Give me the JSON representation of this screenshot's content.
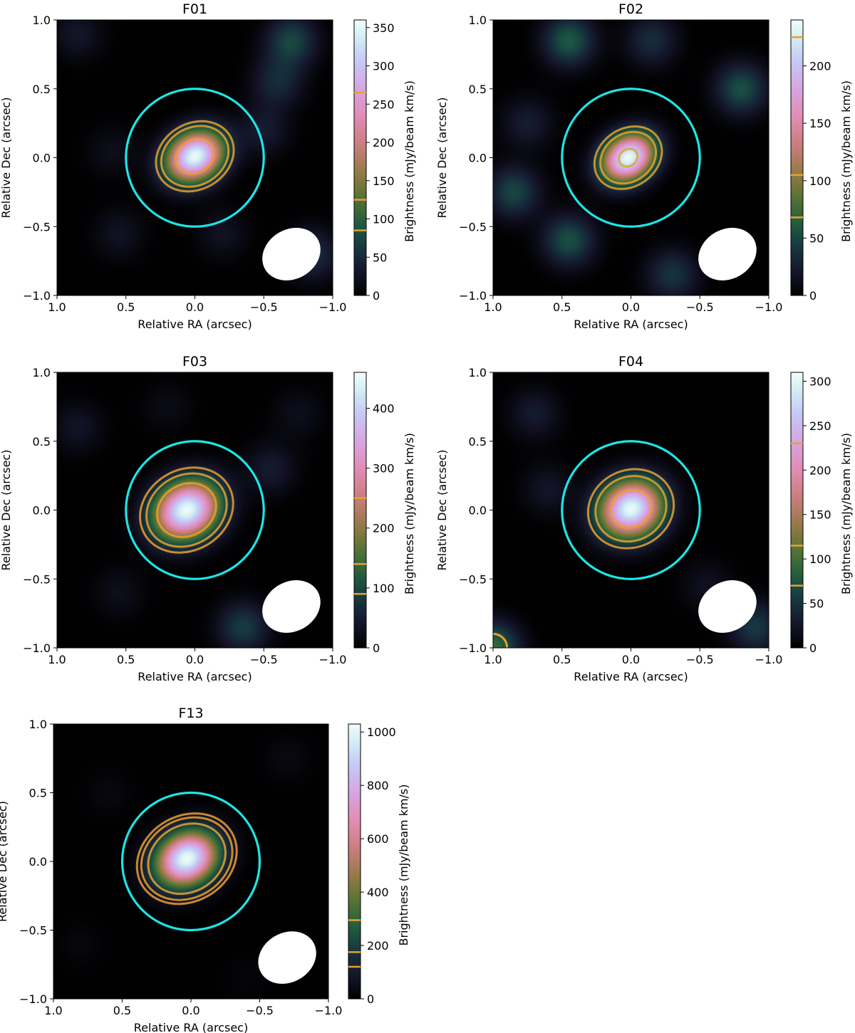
{
  "chart_data": [
    {
      "type": "heatmap",
      "title": "F01",
      "xlabel": "Relative RA (arcsec)",
      "ylabel": "Relative Dec (arcsec)",
      "colorbar_label": "Brightness (mJy/beam km/s)",
      "xlim": [
        1.0,
        -1.0
      ],
      "ylim": [
        -1.0,
        1.0
      ],
      "xticks": [
        "1.0",
        "0.5",
        "0.0",
        "−0.5",
        "−1.0"
      ],
      "yticks": [
        "1.0",
        "0.5",
        "0.0",
        "−0.5",
        "−1.0"
      ],
      "colorbar_range": [
        0,
        360
      ],
      "colorbar_ticks": [
        "0",
        "50",
        "100",
        "150",
        "200",
        "250",
        "300",
        "350"
      ],
      "colorbar_tick_values": [
        0,
        50,
        100,
        150,
        200,
        250,
        300,
        350
      ],
      "contour_levels": [
        85,
        125,
        265
      ],
      "source": {
        "ra_offset": 0.0,
        "dec_offset": 0.01,
        "peak": 355,
        "sigma_major": 0.15,
        "sigma_minor": 0.12,
        "pa": 30
      },
      "aperture_radius": 0.5,
      "aperture_color": "#1ce6e6",
      "contour_color": "#e8a02e",
      "beam": {
        "ra_center": -0.7,
        "dec_center": -0.7,
        "major": 0.44,
        "minor": 0.36,
        "pa": 30
      },
      "noise_peaks": [
        {
          "ra": -0.7,
          "dec": 0.85,
          "amp": 75
        },
        {
          "ra": -0.6,
          "dec": 0.55,
          "amp": 50
        },
        {
          "ra": 0.85,
          "dec": 0.9,
          "amp": 30
        },
        {
          "ra": -0.5,
          "dec": 0.2,
          "amp": 35
        },
        {
          "ra": -0.85,
          "dec": -0.7,
          "amp": 55
        },
        {
          "ra": 0.55,
          "dec": -0.55,
          "amp": 25
        },
        {
          "ra": 0.6,
          "dec": 0.05,
          "amp": 20
        },
        {
          "ra": -0.2,
          "dec": -0.55,
          "amp": 25
        }
      ]
    },
    {
      "type": "heatmap",
      "title": "F02",
      "xlabel": "Relative RA (arcsec)",
      "ylabel": "Relative Dec (arcsec)",
      "colorbar_label": "Brightness (mJy/beam km/s)",
      "xlim": [
        1.0,
        -1.0
      ],
      "ylim": [
        -1.0,
        1.0
      ],
      "xticks": [
        "1.0",
        "0.5",
        "0.0",
        "−0.5",
        "−1.0"
      ],
      "yticks": [
        "1.0",
        "0.5",
        "0.0",
        "−0.5",
        "−1.0"
      ],
      "colorbar_range": [
        0,
        240
      ],
      "colorbar_ticks": [
        "0",
        "50",
        "100",
        "150",
        "200"
      ],
      "colorbar_tick_values": [
        0,
        50,
        100,
        150,
        200
      ],
      "contour_levels": [
        68,
        105,
        225
      ],
      "source": {
        "ra_offset": 0.02,
        "dec_offset": 0.0,
        "peak": 238,
        "sigma_major": 0.14,
        "sigma_minor": 0.11,
        "pa": 35
      },
      "aperture_radius": 0.5,
      "aperture_color": "#1ce6e6",
      "contour_color": "#e8a02e",
      "beam": {
        "ra_center": -0.7,
        "dec_center": -0.7,
        "major": 0.44,
        "minor": 0.36,
        "pa": 30
      },
      "noise_peaks": [
        {
          "ra": 0.45,
          "dec": 0.85,
          "amp": 60
        },
        {
          "ra": -0.8,
          "dec": 0.5,
          "amp": 55
        },
        {
          "ra": 0.85,
          "dec": -0.25,
          "amp": 50
        },
        {
          "ra": 0.45,
          "dec": -0.6,
          "amp": 55
        },
        {
          "ra": -0.15,
          "dec": 0.85,
          "amp": 35
        },
        {
          "ra": -0.3,
          "dec": -0.85,
          "amp": 40
        },
        {
          "ra": 0.75,
          "dec": 0.25,
          "amp": 25
        }
      ]
    },
    {
      "type": "heatmap",
      "title": "F03",
      "xlabel": "Relative RA (arcsec)",
      "ylabel": "Relative Dec (arcsec)",
      "colorbar_label": "Brightness (mJy/beam km/s)",
      "xlim": [
        1.0,
        -1.0
      ],
      "ylim": [
        -1.0,
        1.0
      ],
      "xticks": [
        "1.0",
        "0.5",
        "0.0",
        "−0.5",
        "−1.0"
      ],
      "yticks": [
        "1.0",
        "0.5",
        "0.0",
        "−0.5",
        "−1.0"
      ],
      "colorbar_range": [
        0,
        460
      ],
      "colorbar_ticks": [
        "0",
        "100",
        "200",
        "300",
        "400"
      ],
      "colorbar_tick_values": [
        0,
        100,
        200,
        300,
        400
      ],
      "contour_levels": [
        90,
        140,
        250
      ],
      "source": {
        "ra_offset": 0.06,
        "dec_offset": 0.0,
        "peak": 455,
        "sigma_major": 0.17,
        "sigma_minor": 0.14,
        "pa": 30
      },
      "aperture_radius": 0.5,
      "aperture_color": "#1ce6e6",
      "contour_color": "#e8a02e",
      "beam": {
        "ra_center": -0.7,
        "dec_center": -0.7,
        "major": 0.44,
        "minor": 0.36,
        "pa": 30
      },
      "noise_peaks": [
        {
          "ra": 0.85,
          "dec": 0.6,
          "amp": 35
        },
        {
          "ra": -0.55,
          "dec": 0.3,
          "amp": 45
        },
        {
          "ra": -0.35,
          "dec": -0.85,
          "amp": 85
        },
        {
          "ra": 0.55,
          "dec": -0.6,
          "amp": 25
        },
        {
          "ra": -0.75,
          "dec": 0.7,
          "amp": 25
        },
        {
          "ra": 0.2,
          "dec": 0.75,
          "amp": 20
        }
      ]
    },
    {
      "type": "heatmap",
      "title": "F04",
      "xlabel": "Relative RA (arcsec)",
      "ylabel": "Relative Dec (arcsec)",
      "colorbar_label": "Brightness (mJy/beam km/s)",
      "xlim": [
        1.0,
        -1.0
      ],
      "ylim": [
        -1.0,
        1.0
      ],
      "xticks": [
        "1.0",
        "0.5",
        "0.0",
        "−0.5",
        "−1.0"
      ],
      "yticks": [
        "1.0",
        "0.5",
        "0.0",
        "−0.5",
        "−1.0"
      ],
      "colorbar_range": [
        0,
        310
      ],
      "colorbar_ticks": [
        "0",
        "50",
        "100",
        "150",
        "200",
        "250",
        "300"
      ],
      "colorbar_tick_values": [
        0,
        50,
        100,
        150,
        200,
        250,
        300
      ],
      "contour_levels": [
        70,
        115,
        230
      ],
      "source": {
        "ra_offset": 0.0,
        "dec_offset": 0.01,
        "peak": 305,
        "sigma_major": 0.16,
        "sigma_minor": 0.14,
        "pa": 25
      },
      "aperture_radius": 0.5,
      "aperture_color": "#1ce6e6",
      "contour_color": "#e8a02e",
      "beam": {
        "ra_center": -0.7,
        "dec_center": -0.7,
        "major": 0.44,
        "minor": 0.36,
        "pa": 30
      },
      "noise_peaks": [
        {
          "ra": 1.0,
          "dec": -1.0,
          "amp": 95
        },
        {
          "ra": -0.9,
          "dec": -0.85,
          "amp": 55
        },
        {
          "ra": 0.7,
          "dec": 0.7,
          "amp": 30
        },
        {
          "ra": 0.6,
          "dec": 0.15,
          "amp": 25
        },
        {
          "ra": -0.55,
          "dec": -0.55,
          "amp": 20
        }
      ]
    },
    {
      "type": "heatmap",
      "title": "F13",
      "xlabel": "Relative RA (arcsec)",
      "ylabel": "Relative Dec (arcsec)",
      "colorbar_label": "Brightness (mJy/beam km/s)",
      "xlim": [
        1.0,
        -1.0
      ],
      "ylim": [
        -1.0,
        1.0
      ],
      "xticks": [
        "1.0",
        "0.5",
        "0.0",
        "−0.5",
        "−1.0"
      ],
      "yticks": [
        "1.0",
        "0.5",
        "0.0",
        "−0.5",
        "−1.0"
      ],
      "colorbar_range": [
        0,
        1030
      ],
      "colorbar_ticks": [
        "0",
        "200",
        "400",
        "600",
        "800",
        "1000"
      ],
      "colorbar_tick_values": [
        0,
        200,
        400,
        600,
        800,
        1000
      ],
      "contour_levels": [
        120,
        175,
        295
      ],
      "source": {
        "ra_offset": 0.03,
        "dec_offset": 0.02,
        "peak": 1020,
        "sigma_major": 0.16,
        "sigma_minor": 0.13,
        "pa": 30
      },
      "aperture_radius": 0.5,
      "aperture_color": "#1ce6e6",
      "contour_color": "#e8a02e",
      "beam": {
        "ra_center": -0.7,
        "dec_center": -0.7,
        "major": 0.44,
        "minor": 0.36,
        "pa": 30
      },
      "noise_peaks": [
        {
          "ra": 0.6,
          "dec": 0.5,
          "amp": 30
        },
        {
          "ra": -0.7,
          "dec": 0.75,
          "amp": 35
        },
        {
          "ra": 0.8,
          "dec": -0.6,
          "amp": 25
        },
        {
          "ra": -0.4,
          "dec": -0.85,
          "amp": 20
        }
      ]
    }
  ]
}
